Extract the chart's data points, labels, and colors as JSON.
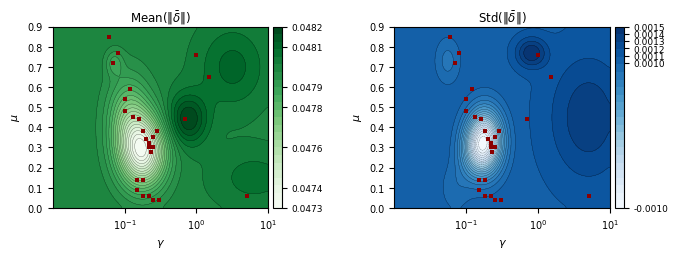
{
  "title_left": "Mean($\\|\\bar{\\delta}\\|$)",
  "title_right": "Std($\\|\\bar{\\delta}\\|$)",
  "xlabel": "$\\gamma$",
  "ylabel": "$\\mu$",
  "scatter_points": [
    [
      0.06,
      0.85
    ],
    [
      0.08,
      0.77
    ],
    [
      0.07,
      0.72
    ],
    [
      0.12,
      0.59
    ],
    [
      0.1,
      0.54
    ],
    [
      0.1,
      0.48
    ],
    [
      0.13,
      0.45
    ],
    [
      0.16,
      0.44
    ],
    [
      0.18,
      0.38
    ],
    [
      0.2,
      0.34
    ],
    [
      0.22,
      0.32
    ],
    [
      0.22,
      0.3
    ],
    [
      0.25,
      0.3
    ],
    [
      0.23,
      0.28
    ],
    [
      0.25,
      0.35
    ],
    [
      0.28,
      0.38
    ],
    [
      0.15,
      0.14
    ],
    [
      0.18,
      0.14
    ],
    [
      0.15,
      0.09
    ],
    [
      0.18,
      0.06
    ],
    [
      0.22,
      0.06
    ],
    [
      0.25,
      0.04
    ],
    [
      0.3,
      0.04
    ],
    [
      1.0,
      0.76
    ],
    [
      1.5,
      0.65
    ],
    [
      0.7,
      0.44
    ],
    [
      5.0,
      0.06
    ]
  ],
  "mean_vmin": 0.0473,
  "mean_vmax": 0.0482,
  "std_vmin": -0.001,
  "std_vmax": 0.0015,
  "mean_cmap": "Greens",
  "std_cmap": "Blues",
  "mean_colorbar_ticks": [
    0.0473,
    0.0474,
    0.0476,
    0.0478,
    0.0479,
    0.0481,
    0.0482
  ],
  "std_colorbar_ticks": [
    -0.001,
    0.001,
    0.0011,
    0.0012,
    0.0013,
    0.0014,
    0.0015
  ],
  "n_contour_levels": 25,
  "scatter_color": "#8B0000",
  "scatter_size": 7
}
